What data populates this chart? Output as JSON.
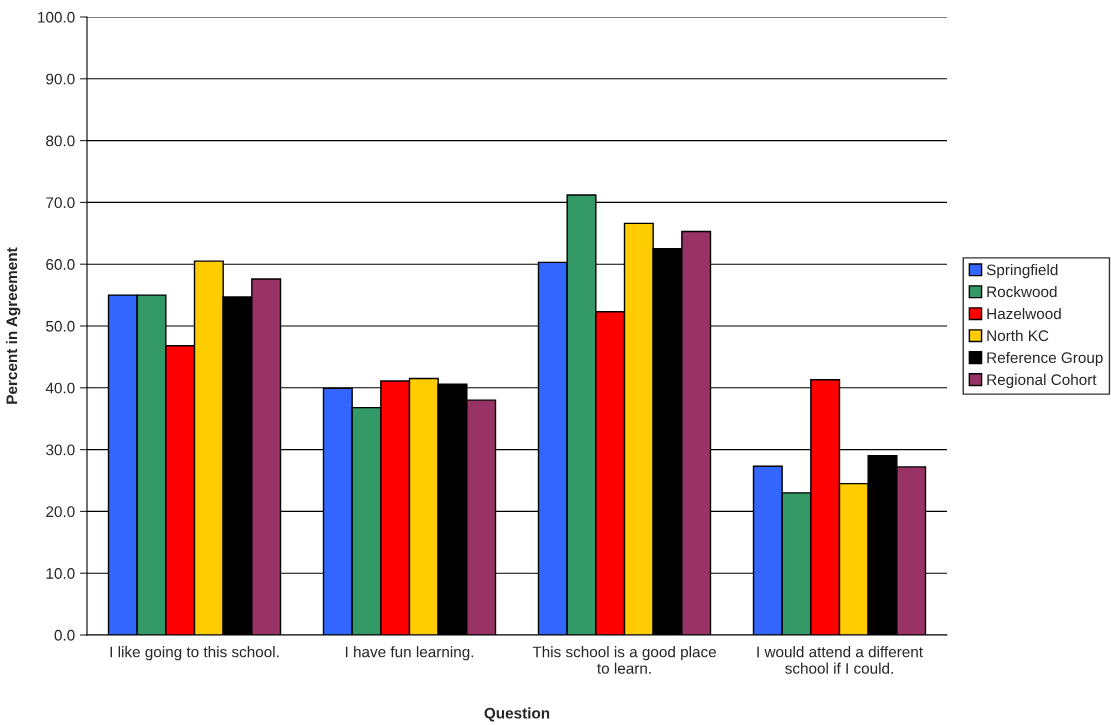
{
  "chart_data": {
    "type": "bar",
    "xlabel": "Question",
    "ylabel": "Percent in Agreement",
    "categories": [
      "I like going to this school.",
      "I have fun learning.",
      "This school is a good place\nto learn.",
      "I would attend a different\nschool if I could."
    ],
    "series": [
      {
        "name": "Springfield",
        "color": "#3366ff",
        "values": [
          55.0,
          39.9,
          60.3,
          27.3
        ]
      },
      {
        "name": "Rockwood",
        "color": "#339966",
        "values": [
          55.0,
          36.8,
          71.2,
          23.0
        ]
      },
      {
        "name": "Hazelwood",
        "color": "#ff0000",
        "values": [
          46.8,
          41.1,
          52.3,
          41.3
        ]
      },
      {
        "name": "North KC",
        "color": "#ffcc00",
        "values": [
          60.5,
          41.5,
          66.6,
          24.5
        ]
      },
      {
        "name": "Reference Group",
        "color": "#000000",
        "values": [
          54.7,
          40.6,
          62.5,
          29.0
        ]
      },
      {
        "name": "Regional Cohort",
        "color": "#993366",
        "values": [
          57.6,
          38.0,
          65.3,
          27.2
        ]
      }
    ],
    "ylim": [
      0,
      100
    ],
    "yticks": [
      {
        "value": 0,
        "label": "0.0"
      },
      {
        "value": 10,
        "label": "10.0"
      },
      {
        "value": 20,
        "label": "20.0"
      },
      {
        "value": 30,
        "label": "30.0"
      },
      {
        "value": 40,
        "label": "40.0"
      },
      {
        "value": 50,
        "label": "50.0"
      },
      {
        "value": 60,
        "label": "60.0"
      },
      {
        "value": 70,
        "label": "70.0"
      },
      {
        "value": 80,
        "label": "80.0"
      },
      {
        "value": 90,
        "label": "90.0"
      },
      {
        "value": 100,
        "label": "100.0"
      }
    ],
    "grid": "y",
    "legend": "right"
  }
}
